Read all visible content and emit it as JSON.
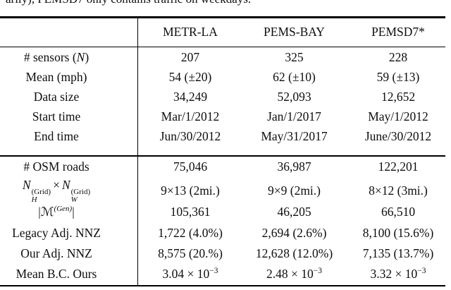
{
  "colors": {
    "background": "#ffffff",
    "text": "#0e0e0e",
    "rule": "#000000"
  },
  "caption_fragment": "arily), PEMSD7 only contains traffic on weekdays.",
  "table": {
    "columns": [
      "METR-LA",
      "PEMS-BAY",
      "PEMSD7*"
    ],
    "rows": [
      {
        "label_prefix": "# sensors (",
        "label_var": "N",
        "label_suffix": ")",
        "values": [
          "207",
          "325",
          "228"
        ]
      },
      {
        "label": "Mean (mph)",
        "values": [
          "54 (±20)",
          "62 (±10)",
          "59 (±13)"
        ]
      },
      {
        "label": "Data size",
        "values": [
          "34,249",
          "52,093",
          "12,652"
        ]
      },
      {
        "label": "Start time",
        "values": [
          "Mar/1/2012",
          "Jan/1/2017",
          "May/1/2012"
        ]
      },
      {
        "label": "End time",
        "values": [
          "Jun/30/2012",
          "May/31/2017",
          "June/30/2012"
        ]
      },
      {
        "label": "# OSM roads",
        "values": [
          "75,046",
          "36,987",
          "122,201"
        ]
      },
      {
        "label_math": {
          "n1": "N",
          "sub1": "H",
          "sup1": "(Grid)",
          "times": "×",
          "n2": "N",
          "sub2": "W",
          "sup2": "(Grid)"
        },
        "values": [
          "9×13 (2mi.)",
          "9×9 (2mi.)",
          "8×12 (3mi.)"
        ]
      },
      {
        "label_mset": {
          "open": "|",
          "letter": "ℳ",
          "sup": "(Gen)",
          "close": "|"
        },
        "values": [
          "105,361",
          "46,205",
          "66,510"
        ]
      },
      {
        "label": "Legacy Adj. NNZ",
        "values": [
          "1,722 (4.0%)",
          "2,694 (2.6%)",
          "8,100 (15.6%)"
        ]
      },
      {
        "label": "Our Adj. NNZ",
        "values": [
          "8,575 (20.%)",
          "12,628 (12.0%)",
          "7,135 (13.7%)"
        ]
      },
      {
        "label": "Mean B.C. Ours",
        "values_sci": [
          {
            "base": "3.04 × 10",
            "exp": "−3"
          },
          {
            "base": "2.48 × 10",
            "exp": "−3"
          },
          {
            "base": "3.32 × 10",
            "exp": "−3"
          }
        ]
      }
    ]
  }
}
